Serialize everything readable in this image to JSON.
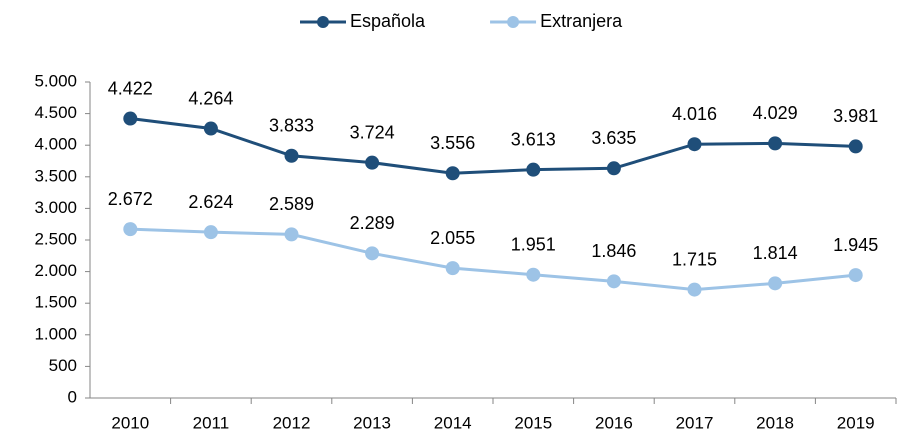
{
  "chart_data": {
    "type": "line",
    "categories": [
      "2010",
      "2011",
      "2012",
      "2013",
      "2014",
      "2015",
      "2016",
      "2017",
      "2018",
      "2019"
    ],
    "series": [
      {
        "name": "Española",
        "color": "#1f4e79",
        "values": [
          4422,
          4264,
          3833,
          3724,
          3556,
          3613,
          3635,
          4016,
          4029,
          3981
        ],
        "value_labels": [
          "4.422",
          "4.264",
          "3.833",
          "3.724",
          "3.556",
          "3.613",
          "3.635",
          "4.016",
          "4.029",
          "3.981"
        ]
      },
      {
        "name": "Extranjera",
        "color": "#9dc3e6",
        "values": [
          2672,
          2624,
          2589,
          2289,
          2055,
          1951,
          1846,
          1715,
          1814,
          1945
        ],
        "value_labels": [
          "2.672",
          "2.624",
          "2.589",
          "2.289",
          "2.055",
          "1.951",
          "1.846",
          "1.715",
          "1.814",
          "1.945"
        ]
      }
    ],
    "ylim": [
      0,
      5000
    ],
    "yticks": [
      0,
      500,
      {
        "value": 1000,
        "label": "1.000"
      },
      {
        "value": 1500,
        "label": "1.500"
      },
      {
        "value": 2000,
        "label": "2.000"
      },
      {
        "value": 2500,
        "label": "2.500"
      },
      {
        "value": 3000,
        "label": "3.000"
      },
      {
        "value": 3500,
        "label": "3.500"
      },
      {
        "value": 4000,
        "label": "4.000"
      },
      {
        "value": 4500,
        "label": "4.500"
      },
      {
        "value": 5000,
        "label": "5.000"
      }
    ],
    "legend": "top",
    "grid": false
  }
}
